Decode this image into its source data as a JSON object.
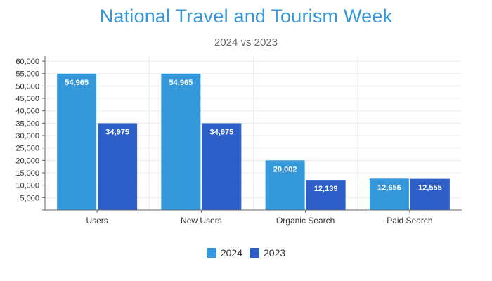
{
  "title": "National Travel and Tourism Week",
  "subtitle": "2024 vs 2023",
  "chart_data": {
    "type": "bar",
    "title": "National Travel and Tourism Week",
    "subtitle": "2024 vs 2023",
    "xlabel": "",
    "ylabel": "",
    "categories": [
      "Users",
      "New Users",
      "Organic Search",
      "Paid Search"
    ],
    "series": [
      {
        "name": "2024",
        "values": [
          54965,
          54965,
          20002,
          12656
        ],
        "color": "#3498db"
      },
      {
        "name": "2023",
        "values": [
          34975,
          34975,
          12139,
          12555
        ],
        "color": "#2e5fc9"
      }
    ],
    "data_labels": [
      [
        "54,965",
        "54,965",
        "20,002",
        "12,656"
      ],
      [
        "34,975",
        "34,975",
        "12,139",
        "12,555"
      ]
    ],
    "yticks": [
      5000,
      10000,
      15000,
      20000,
      25000,
      30000,
      35000,
      40000,
      45000,
      50000,
      55000,
      60000
    ],
    "ytick_labels": [
      "5,000",
      "10,000",
      "15,000",
      "20,000",
      "25,000",
      "30,000",
      "35,000",
      "40,000",
      "45,000",
      "50,000",
      "55,000",
      "60,000"
    ],
    "ylim": [
      0,
      62000
    ],
    "grid": true,
    "legend": "bottom-center"
  }
}
